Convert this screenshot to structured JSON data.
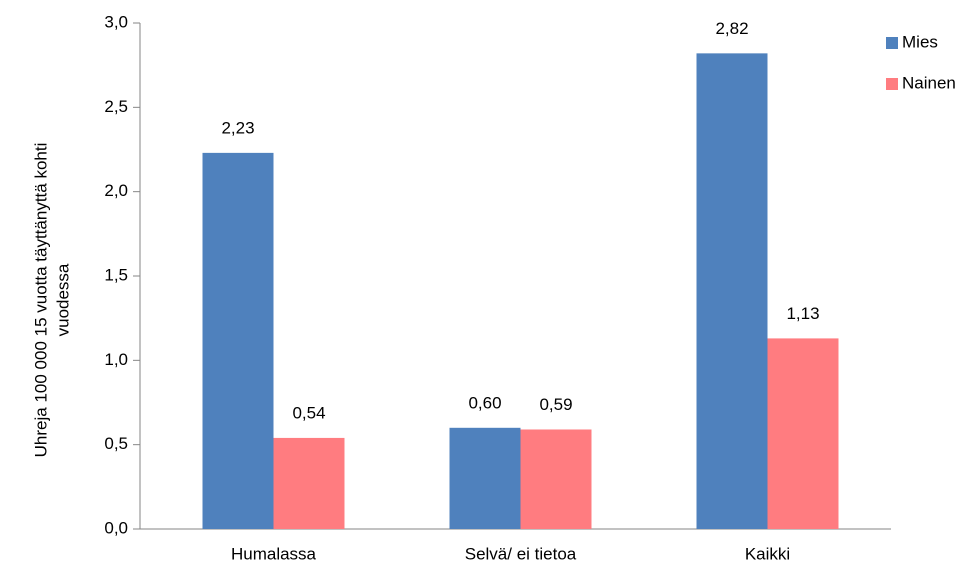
{
  "chart_data": {
    "type": "bar",
    "categories": [
      "Humalassa",
      "Selvä/ ei tietoa",
      "Kaikki"
    ],
    "series": [
      {
        "name": "Mies",
        "color": "#4f81bd",
        "values": [
          2.23,
          0.6,
          2.82
        ],
        "value_labels": [
          "2,23",
          "0,60",
          "2,82"
        ]
      },
      {
        "name": "Nainen",
        "color": "#ff7c80",
        "values": [
          0.54,
          0.59,
          1.13
        ],
        "value_labels": [
          "0,54",
          "0,59",
          "1,13"
        ]
      }
    ],
    "ylabel": [
      "Uhreja 100 000 15 vuotta täyttänyttä kohti",
      "vuodessa"
    ],
    "ylim": [
      0,
      3
    ],
    "yticks": [
      {
        "value": 0,
        "label": "0,0"
      },
      {
        "value": 0.5,
        "label": "0,5"
      },
      {
        "value": 1,
        "label": "1,0"
      },
      {
        "value": 1.5,
        "label": "1,5"
      },
      {
        "value": 2,
        "label": "2,0"
      },
      {
        "value": 2.5,
        "label": "2,5"
      },
      {
        "value": 3,
        "label": "3,0"
      }
    ],
    "legend": "right"
  }
}
